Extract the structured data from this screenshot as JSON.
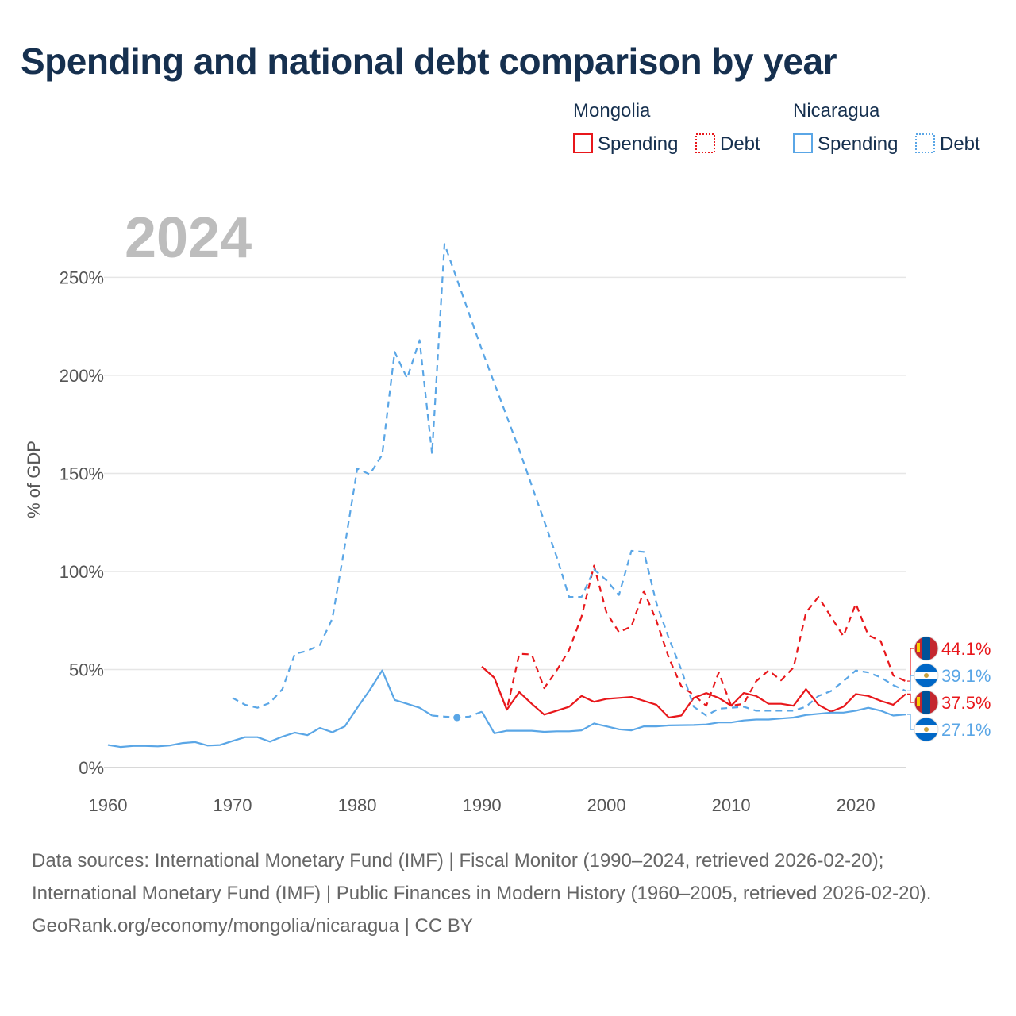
{
  "title": "Spending and national debt comparison by year",
  "year_label": "2024",
  "legend": {
    "groups": [
      {
        "country": "Mongolia",
        "color": "#e8171b",
        "spending": "Spending",
        "debt": "Debt"
      },
      {
        "country": "Nicaragua",
        "color": "#5aa6e6",
        "spending": "Spending",
        "debt": "Debt"
      }
    ]
  },
  "footer": {
    "sources": "Data sources: International Monetary Fund (IMF) | Fiscal Monitor (1990–2024, retrieved 2026-02-20); International Monetary Fund (IMF) | Public Finances in Modern History (1960–2005, retrieved 2026-02-20).",
    "credit": "GeoRank.org/economy/mongolia/nicaragua | CC BY"
  },
  "chart_data": {
    "type": "line",
    "title": "Spending and national debt comparison by year",
    "xlabel": "",
    "ylabel": "% of GDP",
    "xlim": [
      1960,
      2024
    ],
    "ylim": [
      0,
      270
    ],
    "x_ticks": [
      1960,
      1970,
      1980,
      1990,
      2000,
      2010,
      2020
    ],
    "y_ticks": [
      0,
      50,
      100,
      150,
      200,
      250
    ],
    "y_tick_labels": [
      "0%",
      "50%",
      "100%",
      "150%",
      "200%",
      "250%"
    ],
    "grid": true,
    "series": [
      {
        "name": "Mongolia Debt",
        "country": "Mongolia",
        "kind": "debt",
        "color": "#e8171b",
        "style": "dashed",
        "points": [
          [
            1990,
            51.5
          ],
          [
            1991,
            45.8
          ],
          [
            1992,
            29.5
          ],
          [
            1993,
            58.0
          ],
          [
            1994,
            57.7
          ],
          [
            1995,
            40.5
          ],
          [
            1996,
            49.5
          ],
          [
            1997,
            60.0
          ],
          [
            1998,
            77.0
          ],
          [
            1999,
            103.0
          ],
          [
            2000,
            79.0
          ],
          [
            2001,
            69.0
          ],
          [
            2002,
            72.0
          ],
          [
            2003,
            90.0
          ],
          [
            2004,
            75.0
          ],
          [
            2005,
            56.0
          ],
          [
            2006,
            41.5
          ],
          [
            2007,
            37.0
          ],
          [
            2008,
            31.5
          ],
          [
            2009,
            48.5
          ],
          [
            2010,
            31.5
          ],
          [
            2011,
            32.5
          ],
          [
            2012,
            44.0
          ],
          [
            2013,
            49.5
          ],
          [
            2014,
            44.5
          ],
          [
            2015,
            51.0
          ],
          [
            2016,
            79.0
          ],
          [
            2017,
            87.0
          ],
          [
            2018,
            77.0
          ],
          [
            2019,
            67.0
          ],
          [
            2020,
            83.5
          ],
          [
            2021,
            67.5
          ],
          [
            2022,
            64.5
          ],
          [
            2023,
            47.0
          ],
          [
            2024,
            44.1
          ]
        ],
        "end_label": "44.1%"
      },
      {
        "name": "Mongolia Spending",
        "country": "Mongolia",
        "kind": "spending",
        "color": "#e8171b",
        "style": "solid",
        "points": [
          [
            1990,
            51.5
          ],
          [
            1991,
            45.8
          ],
          [
            1992,
            29.5
          ],
          [
            1993,
            38.5
          ],
          [
            1994,
            32.5
          ],
          [
            1995,
            27.0
          ],
          [
            1996,
            29.0
          ],
          [
            1997,
            31.0
          ],
          [
            1998,
            36.5
          ],
          [
            1999,
            33.5
          ],
          [
            2000,
            35.0
          ],
          [
            2001,
            35.5
          ],
          [
            2002,
            36.0
          ],
          [
            2003,
            34.0
          ],
          [
            2004,
            32.0
          ],
          [
            2005,
            25.5
          ],
          [
            2006,
            26.5
          ],
          [
            2007,
            35.5
          ],
          [
            2008,
            38.0
          ],
          [
            2009,
            35.5
          ],
          [
            2010,
            31.5
          ],
          [
            2011,
            38.0
          ],
          [
            2012,
            36.5
          ],
          [
            2013,
            32.5
          ],
          [
            2014,
            32.5
          ],
          [
            2015,
            31.5
          ],
          [
            2016,
            40.0
          ],
          [
            2017,
            32.0
          ],
          [
            2018,
            28.5
          ],
          [
            2019,
            31.0
          ],
          [
            2020,
            37.5
          ],
          [
            2021,
            36.5
          ],
          [
            2022,
            34.0
          ],
          [
            2023,
            32.0
          ],
          [
            2024,
            37.5
          ]
        ],
        "end_label": "37.5%"
      },
      {
        "name": "Nicaragua Debt",
        "country": "Nicaragua",
        "kind": "debt",
        "color": "#5aa6e6",
        "style": "dashed",
        "points": [
          [
            1970,
            35.5
          ],
          [
            1971,
            32.0
          ],
          [
            1972,
            30.5
          ],
          [
            1973,
            33.0
          ],
          [
            1974,
            40.0
          ],
          [
            1975,
            58.0
          ],
          [
            1976,
            59.5
          ],
          [
            1977,
            62.5
          ],
          [
            1978,
            76.0
          ],
          [
            1979,
            113.0
          ],
          [
            1980,
            152.5
          ],
          [
            1981,
            149.5
          ],
          [
            1982,
            159.5
          ],
          [
            1983,
            212.0
          ],
          [
            1984,
            198.5
          ],
          [
            1985,
            218.0
          ],
          [
            1986,
            160.0
          ],
          [
            1987,
            267.0
          ],
          [
            1990,
            213.0
          ],
          [
            1993,
            162.0
          ],
          [
            1996,
            107.5
          ],
          [
            1997,
            87.0
          ],
          [
            1998,
            87.0
          ],
          [
            1999,
            101.0
          ],
          [
            2000,
            95.5
          ],
          [
            2001,
            88.0
          ],
          [
            2002,
            110.5
          ],
          [
            2003,
            110.0
          ],
          [
            2004,
            84.0
          ],
          [
            2005,
            66.0
          ],
          [
            2006,
            50.0
          ],
          [
            2007,
            31.0
          ],
          [
            2008,
            26.5
          ],
          [
            2009,
            30.0
          ],
          [
            2010,
            30.5
          ],
          [
            2011,
            31.0
          ],
          [
            2012,
            29.0
          ],
          [
            2013,
            29.0
          ],
          [
            2014,
            29.0
          ],
          [
            2015,
            29.0
          ],
          [
            2016,
            31.0
          ],
          [
            2017,
            36.5
          ],
          [
            2018,
            39.0
          ],
          [
            2019,
            44.0
          ],
          [
            2020,
            49.5
          ],
          [
            2021,
            48.5
          ],
          [
            2022,
            46.0
          ],
          [
            2023,
            42.0
          ],
          [
            2024,
            39.1
          ]
        ],
        "dotted_gap": [
          [
            1986,
            26.5
          ],
          [
            1987,
            26.0
          ],
          [
            1988,
            25.5
          ],
          [
            1989,
            26.0
          ],
          [
            1990,
            28.5
          ]
        ],
        "marker_point": [
          1988,
          25.5
        ],
        "end_label": "39.1%"
      },
      {
        "name": "Nicaragua Spending",
        "country": "Nicaragua",
        "kind": "spending",
        "color": "#5aa6e6",
        "style": "solid",
        "points": [
          [
            1960,
            11.5
          ],
          [
            1961,
            10.5
          ],
          [
            1962,
            11.0
          ],
          [
            1963,
            11.0
          ],
          [
            1964,
            10.8
          ],
          [
            1965,
            11.3
          ],
          [
            1966,
            12.5
          ],
          [
            1967,
            13.0
          ],
          [
            1968,
            11.2
          ],
          [
            1969,
            11.5
          ],
          [
            1970,
            13.5
          ],
          [
            1971,
            15.5
          ],
          [
            1972,
            15.5
          ],
          [
            1973,
            13.2
          ],
          [
            1974,
            15.8
          ],
          [
            1975,
            17.8
          ],
          [
            1976,
            16.5
          ],
          [
            1977,
            20.2
          ],
          [
            1978,
            18.0
          ],
          [
            1979,
            21.0
          ],
          [
            1980,
            30.5
          ],
          [
            1981,
            39.5
          ],
          [
            1982,
            49.5
          ],
          [
            1983,
            34.5
          ],
          [
            1984,
            32.5
          ],
          [
            1985,
            30.5
          ],
          [
            1986,
            26.5
          ]
        ],
        "points_late": [
          [
            1990,
            28.5
          ],
          [
            1991,
            17.5
          ],
          [
            1992,
            18.8
          ],
          [
            1993,
            18.8
          ],
          [
            1994,
            18.8
          ],
          [
            1995,
            18.2
          ],
          [
            1996,
            18.5
          ],
          [
            1997,
            18.5
          ],
          [
            1998,
            19.0
          ],
          [
            1999,
            22.5
          ],
          [
            2000,
            21.0
          ],
          [
            2001,
            19.5
          ],
          [
            2002,
            19.0
          ],
          [
            2003,
            21.0
          ],
          [
            2004,
            21.0
          ],
          [
            2005,
            21.5
          ],
          [
            2006,
            21.6
          ],
          [
            2007,
            21.7
          ],
          [
            2008,
            22.0
          ],
          [
            2009,
            23.0
          ],
          [
            2010,
            23.0
          ],
          [
            2011,
            24.0
          ],
          [
            2012,
            24.5
          ],
          [
            2013,
            24.5
          ],
          [
            2014,
            25.0
          ],
          [
            2015,
            25.5
          ],
          [
            2016,
            26.8
          ],
          [
            2017,
            27.4
          ],
          [
            2018,
            28.0
          ],
          [
            2019,
            28.0
          ],
          [
            2020,
            29.0
          ],
          [
            2021,
            30.5
          ],
          [
            2022,
            29.0
          ],
          [
            2023,
            26.5
          ],
          [
            2024,
            27.1
          ]
        ],
        "end_label": "27.1%"
      }
    ]
  }
}
